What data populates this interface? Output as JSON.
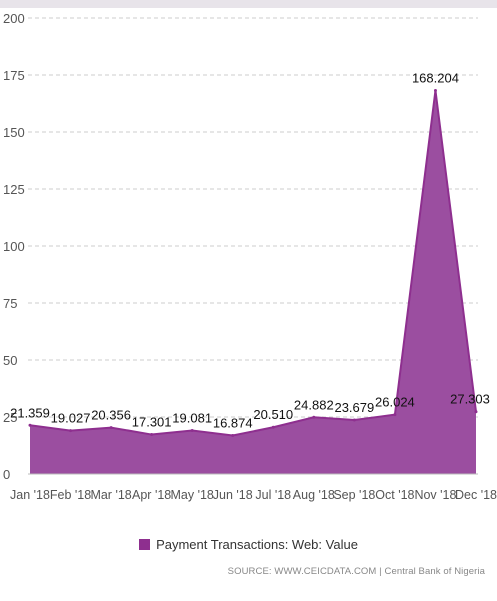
{
  "colors": {
    "series": "#8e2f8f",
    "series_fill": "#9b4ea0",
    "grid": "#cccccc",
    "axis_text": "#555555",
    "label_text": "#111111"
  },
  "chart_data": {
    "type": "area",
    "categories": [
      "Jan '18",
      "Feb '18",
      "Mar '18",
      "Apr '18",
      "May '18",
      "Jun '18",
      "Jul '18",
      "Aug '18",
      "Sep '18",
      "Oct '18",
      "Nov '18",
      "Dec '18"
    ],
    "series": [
      {
        "name": "Payment Transactions: Web: Value",
        "values": [
          21.359,
          19.027,
          20.356,
          17.301,
          19.081,
          16.874,
          20.51,
          24.882,
          23.679,
          26.024,
          168.204,
          27.303
        ],
        "labels": [
          "21.359",
          "19.027",
          "20.356",
          "17.301",
          "19.081",
          "16.874",
          "20.510",
          "24.882",
          "23.679",
          "26.024",
          "168.204",
          "27.303"
        ]
      }
    ],
    "ylim": [
      0,
      200
    ],
    "yticks": [
      0,
      25,
      50,
      75,
      100,
      125,
      150,
      175,
      200
    ],
    "grid": "horizontal-dashed",
    "legend": "bottom-center"
  },
  "legend": {
    "label": "Payment Transactions: Web: Value"
  },
  "source": {
    "text": "SOURCE: WWW.CEICDATA.COM | Central Bank of Nigeria"
  }
}
